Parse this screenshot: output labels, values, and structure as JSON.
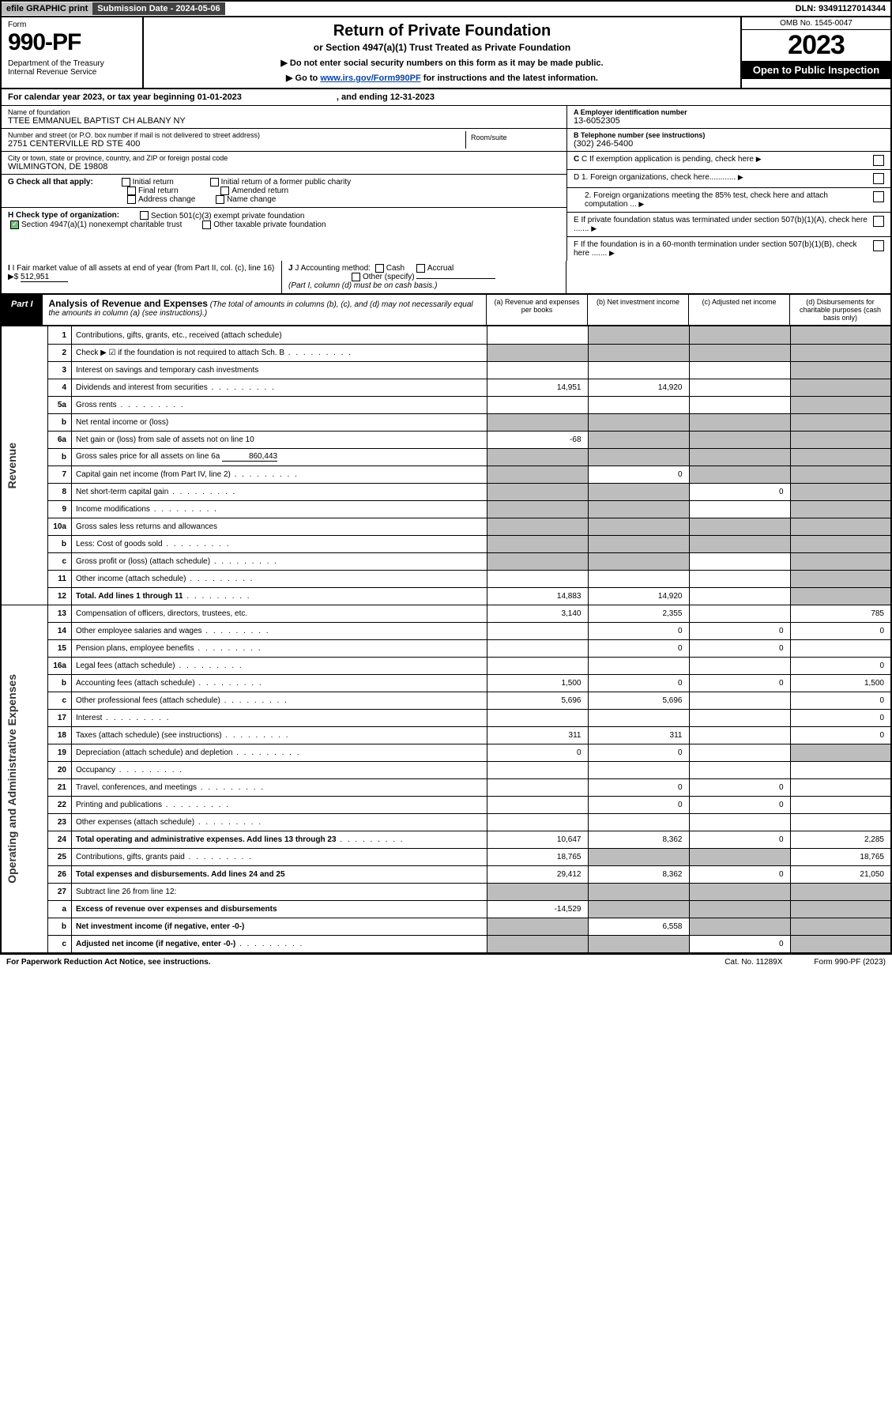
{
  "top": {
    "efile": "efile GRAPHIC print",
    "submission": "Submission Date - 2024-05-06",
    "dln": "DLN: 93491127014344"
  },
  "header": {
    "form_word": "Form",
    "form_no": "990-PF",
    "dept": "Department of the Treasury\nInternal Revenue Service",
    "title": "Return of Private Foundation",
    "subtitle": "or Section 4947(a)(1) Trust Treated as Private Foundation",
    "note1": "▶ Do not enter social security numbers on this form as it may be made public.",
    "note2_pre": "▶ Go to ",
    "note2_link": "www.irs.gov/Form990PF",
    "note2_post": " for instructions and the latest information.",
    "omb": "OMB No. 1545-0047",
    "year": "2023",
    "open": "Open to Public Inspection"
  },
  "cal": {
    "text_a": "For calendar year 2023, or tax year beginning 01-01-2023",
    "text_b": ", and ending 12-31-2023"
  },
  "entity": {
    "name_lbl": "Name of foundation",
    "name": "TTEE EMMANUEL BAPTIST CH ALBANY NY",
    "addr_lbl": "Number and street (or P.O. box number if mail is not delivered to street address)",
    "addr": "2751 CENTERVILLE RD STE 400",
    "room_lbl": "Room/suite",
    "city_lbl": "City or town, state or province, country, and ZIP or foreign postal code",
    "city": "WILMINGTON, DE  19808",
    "a_lbl": "A Employer identification number",
    "a_val": "13-6052305",
    "b_lbl": "B Telephone number (see instructions)",
    "b_val": "(302) 246-5400",
    "c_txt": "C If exemption application is pending, check here",
    "d1": "D 1. Foreign organizations, check here............",
    "d2": "2. Foreign organizations meeting the 85% test, check here and attach computation ...",
    "e": "E  If private foundation status was terminated under section 507(b)(1)(A), check here .......",
    "f": "F  If the foundation is in a 60-month termination under section 507(b)(1)(B), check here .......",
    "g_lbl": "G Check all that apply:",
    "g_opts": [
      "Initial return",
      "Final return",
      "Address change",
      "Initial return of a former public charity",
      "Amended return",
      "Name change"
    ],
    "h_lbl": "H Check type of organization:",
    "h1": "Section 501(c)(3) exempt private foundation",
    "h2": "Section 4947(a)(1) nonexempt charitable trust",
    "h3": "Other taxable private foundation",
    "i_lbl": "I Fair market value of all assets at end of year (from Part II, col. (c), line 16)",
    "i_val": "512,951",
    "j_lbl": "J Accounting method:",
    "j_cash": "Cash",
    "j_accr": "Accrual",
    "j_other": "Other (specify)",
    "j_note": "(Part I, column (d) must be on cash basis.)"
  },
  "part1": {
    "tag": "Part I",
    "title": "Analysis of Revenue and Expenses",
    "title_note": "(The total of amounts in columns (b), (c), and (d) may not necessarily equal the amounts in column (a) (see instructions).)",
    "cols": [
      "(a)   Revenue and expenses per books",
      "(b)   Net investment income",
      "(c)   Adjusted net income",
      "(d)   Disbursements for charitable purposes (cash basis only)"
    ],
    "vlabels": {
      "rev": "Revenue",
      "exp": "Operating and Administrative Expenses"
    }
  },
  "rows": [
    {
      "n": "1",
      "d": "Contributions, gifts, grants, etc., received (attach schedule)",
      "a": "",
      "b": "g",
      "c": "g",
      "dd": "g"
    },
    {
      "n": "2",
      "d": "Check ▶ ☑ if the foundation is not required to attach Sch. B",
      "dotted": true,
      "a": "g",
      "b": "g",
      "c": "g",
      "dd": "g"
    },
    {
      "n": "3",
      "d": "Interest on savings and temporary cash investments",
      "a": "",
      "b": "",
      "c": "",
      "dd": "g"
    },
    {
      "n": "4",
      "d": "Dividends and interest from securities",
      "dotted": true,
      "a": "14,951",
      "b": "14,920",
      "c": "",
      "dd": "g"
    },
    {
      "n": "5a",
      "d": "Gross rents",
      "dotted": true,
      "a": "",
      "b": "",
      "c": "",
      "dd": "g"
    },
    {
      "n": "b",
      "d": "Net rental income or (loss)",
      "inset": true,
      "a": "g",
      "b": "g",
      "c": "g",
      "dd": "g"
    },
    {
      "n": "6a",
      "d": "Net gain or (loss) from sale of assets not on line 10",
      "a": "-68",
      "b": "g",
      "c": "g",
      "dd": "g"
    },
    {
      "n": "b",
      "d": "Gross sales price for all assets on line 6a",
      "inset": true,
      "extra": "860,443",
      "a": "g",
      "b": "g",
      "c": "g",
      "dd": "g"
    },
    {
      "n": "7",
      "d": "Capital gain net income (from Part IV, line 2)",
      "dotted": true,
      "a": "g",
      "b": "0",
      "c": "g",
      "dd": "g"
    },
    {
      "n": "8",
      "d": "Net short-term capital gain",
      "dotted": true,
      "a": "g",
      "b": "g",
      "c": "0",
      "dd": "g"
    },
    {
      "n": "9",
      "d": "Income modifications",
      "dotted": true,
      "a": "g",
      "b": "g",
      "c": "",
      "dd": "g"
    },
    {
      "n": "10a",
      "d": "Gross sales less returns and allowances",
      "inset": true,
      "a": "g",
      "b": "g",
      "c": "g",
      "dd": "g"
    },
    {
      "n": "b",
      "d": "Less: Cost of goods sold",
      "dotted": true,
      "inset": true,
      "a": "g",
      "b": "g",
      "c": "g",
      "dd": "g"
    },
    {
      "n": "c",
      "d": "Gross profit or (loss) (attach schedule)",
      "dotted": true,
      "a": "g",
      "b": "g",
      "c": "",
      "dd": "g"
    },
    {
      "n": "11",
      "d": "Other income (attach schedule)",
      "dotted": true,
      "a": "",
      "b": "",
      "c": "",
      "dd": "g"
    },
    {
      "n": "12",
      "d": "Total. Add lines 1 through 11",
      "bold": true,
      "dotted": true,
      "a": "14,883",
      "b": "14,920",
      "c": "",
      "dd": "g"
    },
    {
      "n": "13",
      "d": "Compensation of officers, directors, trustees, etc.",
      "a": "3,140",
      "b": "2,355",
      "c": "",
      "dd": "785"
    },
    {
      "n": "14",
      "d": "Other employee salaries and wages",
      "dotted": true,
      "a": "",
      "b": "0",
      "c": "0",
      "dd": "0"
    },
    {
      "n": "15",
      "d": "Pension plans, employee benefits",
      "dotted": true,
      "a": "",
      "b": "0",
      "c": "0",
      "dd": ""
    },
    {
      "n": "16a",
      "d": "Legal fees (attach schedule)",
      "dotted": true,
      "a": "",
      "b": "",
      "c": "",
      "dd": "0"
    },
    {
      "n": "b",
      "d": "Accounting fees (attach schedule)",
      "dotted": true,
      "a": "1,500",
      "b": "0",
      "c": "0",
      "dd": "1,500"
    },
    {
      "n": "c",
      "d": "Other professional fees (attach schedule)",
      "dotted": true,
      "a": "5,696",
      "b": "5,696",
      "c": "",
      "dd": "0"
    },
    {
      "n": "17",
      "d": "Interest",
      "dotted": true,
      "a": "",
      "b": "",
      "c": "",
      "dd": "0"
    },
    {
      "n": "18",
      "d": "Taxes (attach schedule) (see instructions)",
      "dotted": true,
      "a": "311",
      "b": "311",
      "c": "",
      "dd": "0"
    },
    {
      "n": "19",
      "d": "Depreciation (attach schedule) and depletion",
      "dotted": true,
      "a": "0",
      "b": "0",
      "c": "",
      "dd": "g"
    },
    {
      "n": "20",
      "d": "Occupancy",
      "dotted": true,
      "a": "",
      "b": "",
      "c": "",
      "dd": ""
    },
    {
      "n": "21",
      "d": "Travel, conferences, and meetings",
      "dotted": true,
      "a": "",
      "b": "0",
      "c": "0",
      "dd": ""
    },
    {
      "n": "22",
      "d": "Printing and publications",
      "dotted": true,
      "a": "",
      "b": "0",
      "c": "0",
      "dd": ""
    },
    {
      "n": "23",
      "d": "Other expenses (attach schedule)",
      "dotted": true,
      "a": "",
      "b": "",
      "c": "",
      "dd": ""
    },
    {
      "n": "24",
      "d": "Total operating and administrative expenses. Add lines 13 through 23",
      "bold": true,
      "dotted": true,
      "a": "10,647",
      "b": "8,362",
      "c": "0",
      "dd": "2,285"
    },
    {
      "n": "25",
      "d": "Contributions, gifts, grants paid",
      "dotted": true,
      "a": "18,765",
      "b": "g",
      "c": "g",
      "dd": "18,765"
    },
    {
      "n": "26",
      "d": "Total expenses and disbursements. Add lines 24 and 25",
      "bold": true,
      "a": "29,412",
      "b": "8,362",
      "c": "0",
      "dd": "21,050"
    },
    {
      "n": "27",
      "d": "Subtract line 26 from line 12:",
      "a": "g",
      "b": "g",
      "c": "g",
      "dd": "g"
    },
    {
      "n": "a",
      "d": "Excess of revenue over expenses and disbursements",
      "bold": true,
      "a": "-14,529",
      "b": "g",
      "c": "g",
      "dd": "g"
    },
    {
      "n": "b",
      "d": "Net investment income (if negative, enter -0-)",
      "bold": true,
      "a": "g",
      "b": "6,558",
      "c": "g",
      "dd": "g"
    },
    {
      "n": "c",
      "d": "Adjusted net income (if negative, enter -0-)",
      "bold": true,
      "dotted": true,
      "a": "g",
      "b": "g",
      "c": "0",
      "dd": "g"
    }
  ],
  "foot": {
    "left": "For Paperwork Reduction Act Notice, see instructions.",
    "mid": "Cat. No. 11289X",
    "right": "Form 990-PF (2023)"
  }
}
